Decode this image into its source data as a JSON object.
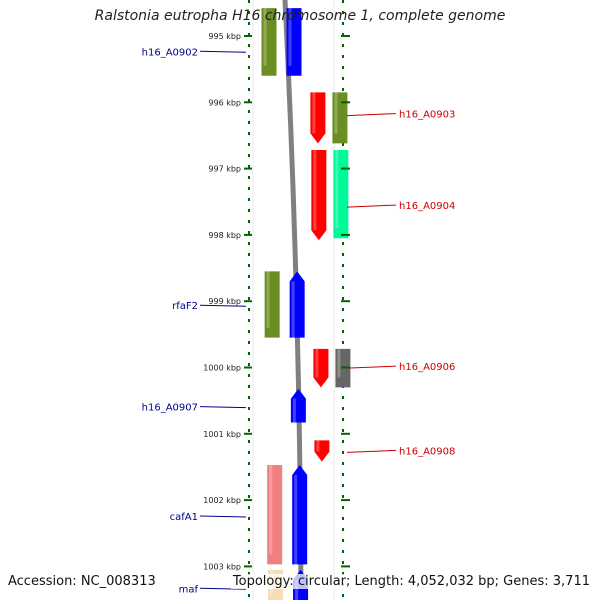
{
  "title": "Ralstonia eutropha H16 chromosome 1, complete genome",
  "accession": "Accession: NC_008313",
  "topology": "Topology: circular; Length: 4,052,032 bp; Genes: 3,711",
  "colors": {
    "olive": "#6b8e23",
    "blue": "#0000ff",
    "red": "#ff0000",
    "mint": "#00fa9a",
    "pink": "#f08080",
    "gray": "#666666",
    "wheat": "#f5deb3",
    "backbone": "#808080",
    "ruler_tick": "#006400",
    "left_label": "#00008b",
    "right_label": "#cc0000"
  },
  "ruler": [
    {
      "kbp": 995,
      "label": "995 kbp"
    },
    {
      "kbp": 996,
      "label": "996 kbp"
    },
    {
      "kbp": 997,
      "label": "997 kbp"
    },
    {
      "kbp": 998,
      "label": "998 kbp"
    },
    {
      "kbp": 999,
      "label": "999 kbp"
    },
    {
      "kbp": 1000,
      "label": "1000 kbp"
    },
    {
      "kbp": 1001,
      "label": "1001 kbp"
    },
    {
      "kbp": 1002,
      "label": "1002 kbp"
    },
    {
      "kbp": 1003,
      "label": "1003 kbp"
    }
  ],
  "genes": [
    {
      "name": "",
      "lane": 1,
      "start": 994.58,
      "end": 995.6,
      "color": "olive",
      "arrow": "none"
    },
    {
      "name": "h16_A0902",
      "lane": 2,
      "start": 994.58,
      "end": 995.6,
      "color": "blue",
      "arrow": "none",
      "labelSide": "left",
      "labelPos": 995.2
    },
    {
      "name": "h16_A0903",
      "lane": 3,
      "start": 995.85,
      "end": 996.62,
      "color": "red",
      "arrow": "down",
      "labelSide": "right",
      "labelPos": 996.17
    },
    {
      "name": "",
      "lane": 4,
      "start": 995.85,
      "end": 996.62,
      "color": "olive",
      "arrow": "none"
    },
    {
      "name": "",
      "lane": 3,
      "start": 996.72,
      "end": 998.08,
      "color": "red",
      "arrow": "down"
    },
    {
      "name": "h16_A0904",
      "lane": 4,
      "start": 996.72,
      "end": 998.05,
      "color": "mint",
      "arrow": "none",
      "labelSide": "right",
      "labelPos": 997.55
    },
    {
      "name": "",
      "lane": 1,
      "start": 998.55,
      "end": 999.55,
      "color": "olive",
      "arrow": "none"
    },
    {
      "name": "rfaF2",
      "lane": 2,
      "start": 998.55,
      "end": 999.55,
      "color": "blue",
      "arrow": "up",
      "labelSide": "left",
      "labelPos": 999.03
    },
    {
      "name": "h16_A0906",
      "lane": 3,
      "start": 999.72,
      "end": 1000.3,
      "color": "red",
      "arrow": "down",
      "labelSide": "right",
      "labelPos": 999.98
    },
    {
      "name": "",
      "lane": 4,
      "start": 999.72,
      "end": 1000.3,
      "color": "gray",
      "arrow": "none"
    },
    {
      "name": "h16_A0907",
      "lane": 2,
      "start": 1000.32,
      "end": 1000.83,
      "color": "blue",
      "arrow": "up",
      "labelSide": "left",
      "labelPos": 1000.56
    },
    {
      "name": "h16_A0908",
      "lane": 3,
      "start": 1001.1,
      "end": 1001.42,
      "color": "red",
      "arrow": "down",
      "labelSide": "right",
      "labelPos": 1001.25
    },
    {
      "name": "",
      "lane": 1,
      "start": 1001.47,
      "end": 1002.97,
      "color": "pink",
      "arrow": "none"
    },
    {
      "name": "cafA1",
      "lane": 2,
      "start": 1001.47,
      "end": 1002.97,
      "color": "blue",
      "arrow": "up",
      "labelSide": "left",
      "labelPos": 1002.21
    },
    {
      "name": "",
      "lane": 1,
      "start": 1003.05,
      "end": 1003.6,
      "color": "wheat",
      "arrow": "none"
    },
    {
      "name": "maf",
      "lane": 2,
      "start": 1003.05,
      "end": 1003.6,
      "color": "blue",
      "arrow": "up",
      "labelSide": "left",
      "labelPos": 1003.3
    }
  ]
}
